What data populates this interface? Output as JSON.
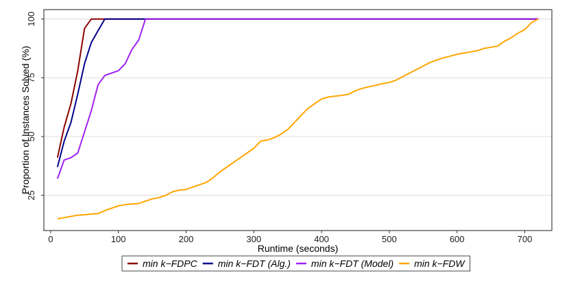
{
  "chart_data": {
    "type": "line",
    "xlabel": "Runtime (seconds)",
    "ylabel": "Proportion of Instances Solved (%)",
    "xlim": [
      -10,
      740
    ],
    "ylim": [
      10,
      104
    ],
    "xticks": [
      0,
      100,
      200,
      300,
      400,
      500,
      600,
      700
    ],
    "yticks": [
      25,
      50,
      75,
      100
    ],
    "grid": "horizontal",
    "legend_position": "bottom",
    "series": [
      {
        "name": "min k−FDPC",
        "color": "#8B0000",
        "x": [
          10,
          20,
          30,
          40,
          50,
          60,
          70,
          80,
          720
        ],
        "y": [
          41,
          54,
          64,
          78,
          96,
          100,
          100,
          100,
          100
        ]
      },
      {
        "name": "min k−FDT (Alg.)",
        "color": "#00008B",
        "x": [
          10,
          20,
          30,
          40,
          50,
          60,
          70,
          80,
          90,
          720
        ],
        "y": [
          37,
          48,
          56,
          68,
          81,
          90,
          95,
          100,
          100,
          100
        ]
      },
      {
        "name": "min k−FDT (Model)",
        "color": "#A020F0",
        "x": [
          10,
          20,
          30,
          40,
          50,
          60,
          70,
          80,
          90,
          100,
          110,
          120,
          130,
          140,
          150,
          720
        ],
        "y": [
          32,
          40,
          41,
          43,
          52,
          61,
          72,
          76,
          77,
          78,
          81,
          87,
          91,
          100,
          100,
          100
        ]
      },
      {
        "name": "min k−FDW",
        "color": "#FFA500",
        "x": [
          10,
          20,
          30,
          40,
          50,
          60,
          70,
          80,
          90,
          100,
          110,
          120,
          130,
          140,
          150,
          160,
          170,
          180,
          190,
          200,
          210,
          220,
          230,
          240,
          250,
          260,
          270,
          280,
          290,
          300,
          310,
          320,
          330,
          340,
          350,
          360,
          370,
          380,
          390,
          400,
          410,
          420,
          430,
          440,
          450,
          460,
          470,
          480,
          490,
          500,
          510,
          520,
          530,
          540,
          550,
          560,
          570,
          580,
          590,
          600,
          610,
          620,
          630,
          640,
          650,
          660,
          670,
          680,
          690,
          700,
          710,
          720
        ],
        "y": [
          15,
          15.5,
          16,
          16.5,
          16.7,
          17,
          17.2,
          18.5,
          19.5,
          20.5,
          21,
          21.3,
          21.5,
          22.5,
          23.5,
          24,
          25,
          26.5,
          27.2,
          27.5,
          28.5,
          29.5,
          30.5,
          32.5,
          35,
          37,
          39,
          41,
          43,
          45,
          48,
          48.5,
          49.5,
          51,
          53,
          56,
          59,
          62,
          64,
          66,
          66.8,
          67.2,
          67.5,
          68,
          69.5,
          70.5,
          71.2,
          71.8,
          72.5,
          73,
          74,
          75.5,
          77,
          78.5,
          80,
          81.5,
          82.5,
          83.5,
          84.2,
          85,
          85.5,
          86,
          86.5,
          87.5,
          88,
          88.5,
          90.5,
          92,
          94,
          95.5,
          98.5,
          100
        ]
      }
    ]
  }
}
